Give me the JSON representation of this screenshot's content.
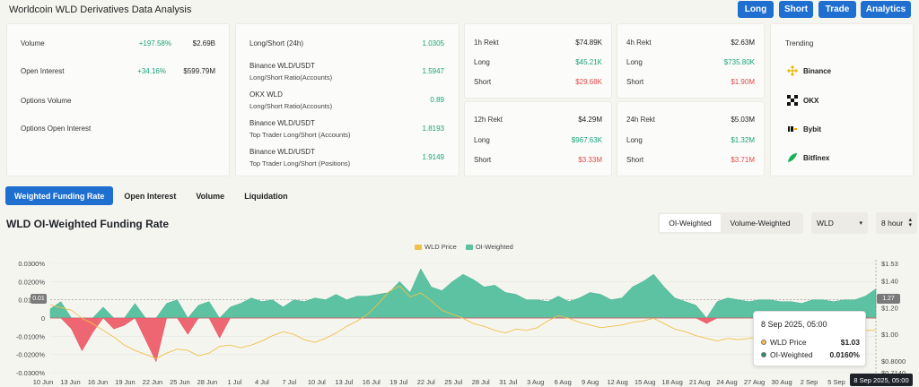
{
  "app": {
    "title": "Worldcoin WLD Derivatives Data Analysis"
  },
  "nav": {
    "long": "Long",
    "short": "Short",
    "trade": "Trade",
    "analytics": "Analytics"
  },
  "overview": {
    "volume_label": "Volume",
    "volume_change": "+197.58%",
    "volume_value": "$2.69B",
    "oi_label": "Open Interest",
    "oi_change": "+34.16%",
    "oi_value": "$599.79M",
    "options_volume_label": "Options Volume",
    "options_oi_label": "Options Open Interest"
  },
  "ratios": {
    "ls24_label": "Long/Short (24h)",
    "ls24_value": "1.0305",
    "binance_label": "Binance WLD/USDT",
    "binance_sub": "Long/Short Ratio(Accounts)",
    "binance_value": "1.5947",
    "okx_label": "OKX WLD",
    "okx_sub": "Long/Short Ratio(Accounts)",
    "okx_value": "0.89",
    "bin_top_acc_label": "Binance WLD/USDT",
    "bin_top_acc_sub": "Top Trader Long/Short (Accounts)",
    "bin_top_acc_value": "1.8193",
    "bin_top_pos_label": "Binance WLD/USDT",
    "bin_top_pos_sub": "Top Trader Long/Short (Positions)",
    "bin_top_pos_value": "1.9149"
  },
  "rekt": {
    "h1": {
      "label": "1h Rekt",
      "total": "$74.89K",
      "long_label": "Long",
      "long": "$45.21K",
      "short_label": "Short",
      "short": "$29.68K"
    },
    "h4": {
      "label": "4h Rekt",
      "total": "$2.63M",
      "long_label": "Long",
      "long": "$735.80K",
      "short_label": "Short",
      "short": "$1.90M"
    },
    "h12": {
      "label": "12h Rekt",
      "total": "$4.29M",
      "long_label": "Long",
      "long": "$967.63K",
      "short_label": "Short",
      "short": "$3.33M"
    },
    "h24": {
      "label": "24h Rekt",
      "total": "$5.03M",
      "long_label": "Long",
      "long": "$1.32M",
      "short_label": "Short",
      "short": "$3.71M"
    }
  },
  "trending": {
    "title": "Trending",
    "items": [
      "Binance",
      "OKX",
      "Bybit",
      "Bitfinex"
    ]
  },
  "tabs": [
    "Weighted Funding Rate",
    "Open Interest",
    "Volume",
    "Liquidation"
  ],
  "chart_section": {
    "title": "WLD OI-Weighted Funding Rate",
    "seg_oi": "OI-Weighted",
    "seg_vol": "Volume-Weighted",
    "coin_select": "WLD",
    "interval_select": "8 hour"
  },
  "tooltip": {
    "date": "8 Sep 2025, 05:00",
    "price_label": "WLD Price",
    "price_value": "$1.03",
    "oi_label": "OI-Weighted",
    "oi_value": "0.0160%"
  },
  "cursor": {
    "x_label": "8 Sep 2025, 05:00",
    "left_marker": "0.01",
    "right_marker": "1.27"
  },
  "colors": {
    "accent": "#1f6fd1",
    "positive": "#1aa37a",
    "negative": "#e24a4a",
    "funding_pos": "#5cc2a2",
    "funding_neg": "#ef6673",
    "price_line": "#f0c04a"
  },
  "chart_data": {
    "type": "area",
    "title": "",
    "legend": [
      "WLD Price",
      "OI-Weighted"
    ],
    "y_left_ticks": [
      "0.0300%",
      "0.0200%",
      "0.0100%",
      "0",
      "-0.0100%",
      "-0.0200%",
      "-0.0300%"
    ],
    "y_right_ticks": [
      "$1.53",
      "$1.40",
      "$1.20",
      "$1.00",
      "$0.8000",
      "$0.7140"
    ],
    "y_left_range": [
      -0.03,
      0.03
    ],
    "y_right_range": [
      0.714,
      1.53
    ],
    "x_ticks": [
      "10 Jun",
      "13 Jun",
      "16 Jun",
      "19 Jun",
      "22 Jun",
      "25 Jun",
      "28 Jun",
      "1 Jul",
      "4 Jul",
      "7 Jul",
      "10 Jul",
      "13 Jul",
      "16 Jul",
      "19 Jul",
      "22 Jul",
      "25 Jul",
      "28 Jul",
      "31 Jul",
      "3 Aug",
      "6 Aug",
      "9 Aug",
      "12 Aug",
      "15 Aug",
      "18 Aug",
      "21 Aug",
      "24 Aug",
      "27 Aug",
      "30 Aug",
      "2 Sep",
      "5 Sep"
    ],
    "series": [
      {
        "name": "OI-Weighted",
        "unit": "%",
        "values": [
          0.005,
          0.009,
          -0.006,
          -0.018,
          -0.008,
          0.006,
          -0.006,
          -0.004,
          0.008,
          -0.012,
          -0.024,
          0.008,
          0.01,
          -0.009,
          0.007,
          0.009,
          -0.011,
          0.006,
          0.008,
          0.011,
          0.009,
          0.01,
          0.006,
          0.01,
          0.009,
          0.011,
          0.01,
          0.013,
          0.01,
          0.012,
          0.012,
          0.013,
          0.014,
          0.02,
          0.014,
          0.027,
          0.017,
          0.015,
          0.02,
          0.024,
          0.021,
          0.017,
          0.018,
          0.014,
          0.013,
          0.01,
          0.01,
          0.009,
          0.012,
          0.009,
          0.011,
          0.014,
          0.013,
          0.01,
          0.011,
          0.017,
          0.02,
          0.024,
          0.017,
          0.011,
          0.009,
          0.007,
          -0.003,
          0.009,
          0.011,
          0.01,
          0.009,
          0.01,
          0.01,
          0.009,
          0.009,
          0.008,
          0.01,
          0.01,
          0.009,
          0.01,
          0.01,
          0.012,
          0.016
        ]
      },
      {
        "name": "WLD Price",
        "unit": "$",
        "values": [
          1.22,
          1.2,
          1.18,
          1.12,
          1.08,
          1.03,
          0.98,
          0.92,
          0.88,
          0.85,
          0.82,
          0.86,
          0.89,
          0.88,
          0.84,
          0.86,
          0.91,
          0.92,
          0.9,
          0.92,
          0.95,
          0.99,
          1.02,
          1.0,
          0.96,
          0.94,
          0.97,
          1.01,
          1.06,
          1.1,
          1.15,
          1.23,
          1.32,
          1.36,
          1.28,
          1.31,
          1.25,
          1.18,
          1.15,
          1.12,
          1.08,
          1.06,
          1.03,
          1.01,
          1.04,
          1.03,
          1.05,
          1.1,
          1.14,
          1.12,
          1.09,
          1.07,
          1.05,
          1.06,
          1.07,
          1.09,
          1.1,
          1.12,
          1.08,
          1.04,
          1.02,
          0.99,
          0.97,
          0.95,
          0.97,
          0.96,
          0.97,
          0.98,
          0.97,
          0.96,
          0.97,
          0.98,
          0.99,
          1.0,
          1.01,
          1.01,
          1.02,
          1.03,
          1.03
        ]
      }
    ]
  }
}
